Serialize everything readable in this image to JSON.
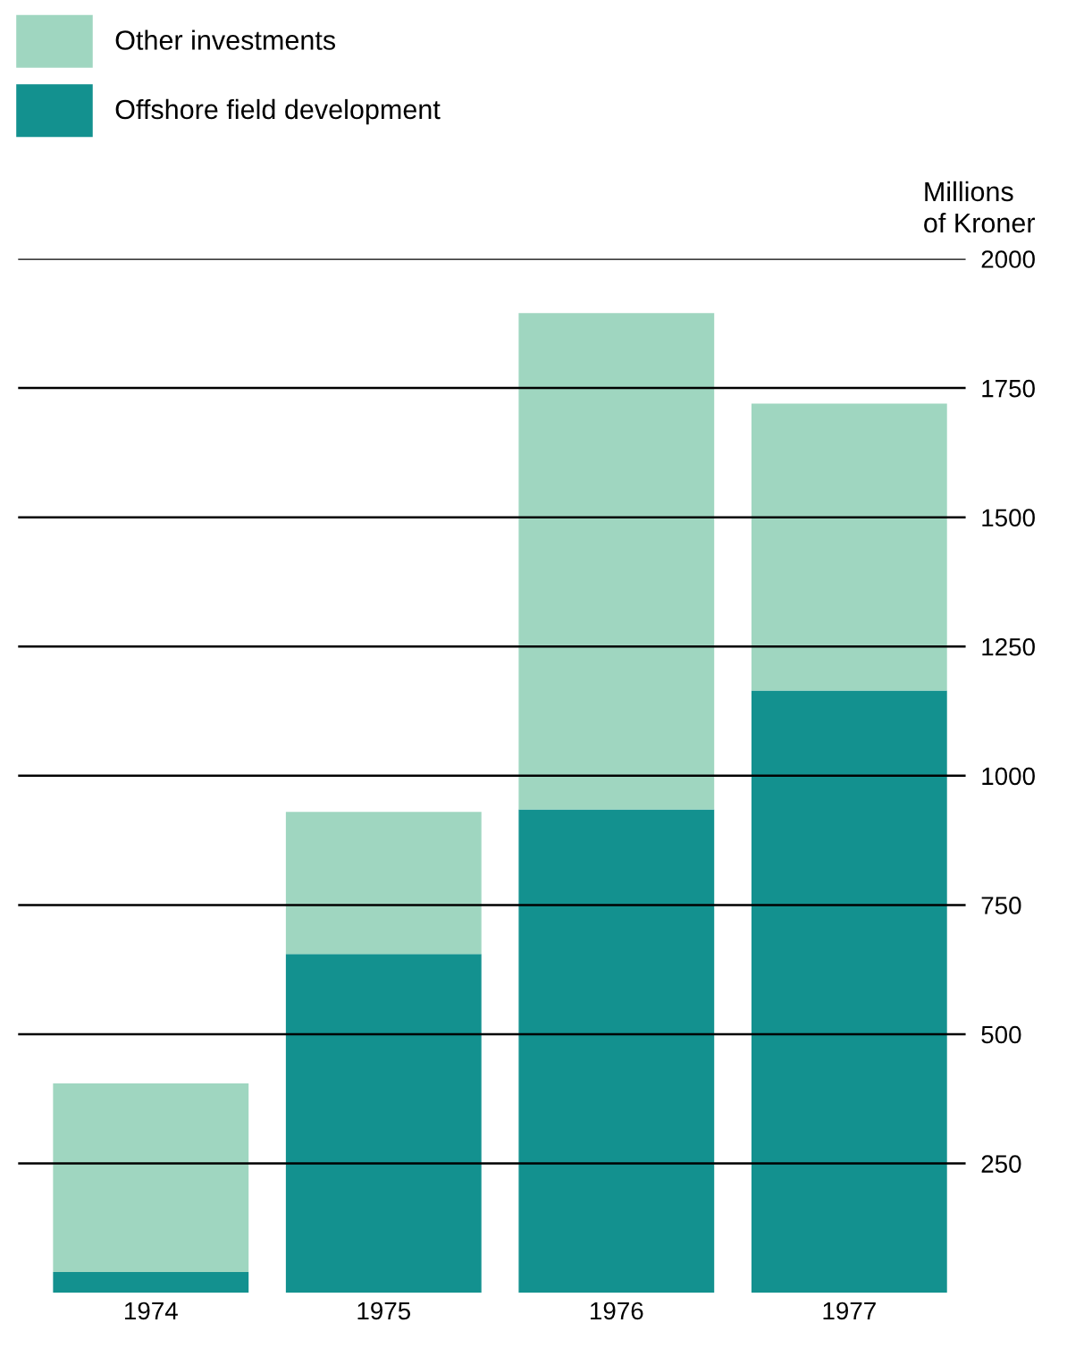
{
  "chart_data": {
    "type": "bar",
    "stacked": true,
    "ylabel": "Millions\nof Kroner",
    "categories": [
      "1974",
      "1975",
      "1976",
      "1977"
    ],
    "series": [
      {
        "name": "Offshore field development",
        "color": "#13918f",
        "values": [
          40,
          655,
          935,
          1165
        ]
      },
      {
        "name": "Other investments",
        "color": "#9fd6c0",
        "values": [
          365,
          275,
          960,
          555
        ]
      }
    ],
    "ylim": [
      0,
      2000
    ],
    "yticks": [
      250,
      500,
      750,
      1000,
      1250,
      1500,
      1750,
      2000
    ],
    "grid": "y",
    "legend": "top left"
  }
}
